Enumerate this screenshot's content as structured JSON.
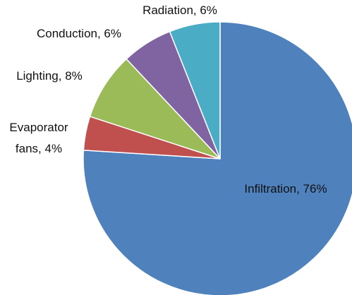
{
  "chart_data": {
    "type": "pie",
    "values": [
      76,
      4,
      8,
      6,
      6
    ],
    "value_labels": [
      "Infiltration, 76%",
      "Evaporator fans, 4%",
      "Lighting, 8%",
      "Conduction, 6%",
      "Radiation, 6%"
    ],
    "colors": [
      "#4f81bd",
      "#c0504d",
      "#9bbb59",
      "#8064a2",
      "#4bacc6"
    ]
  }
}
